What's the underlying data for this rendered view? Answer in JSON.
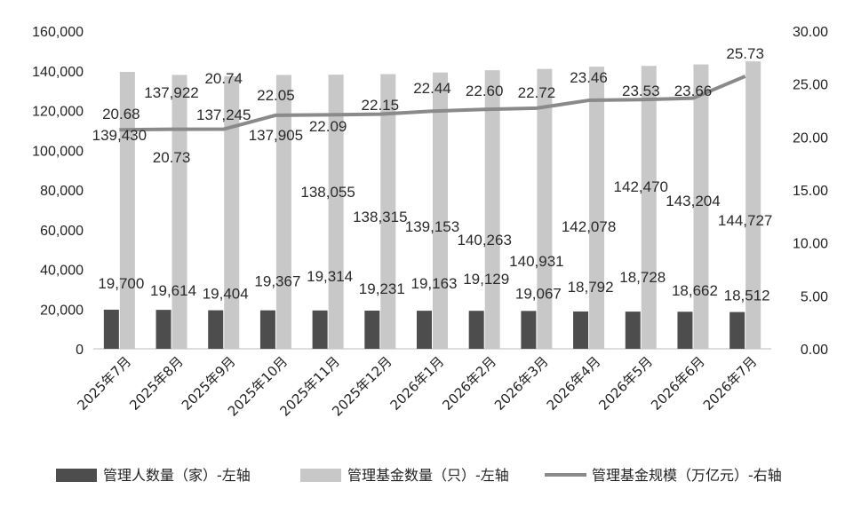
{
  "chart_data": {
    "type": "bar",
    "categories": [
      "2025年7月",
      "2025年8月",
      "2025年9月",
      "2025年10月",
      "2025年11月",
      "2025年12月",
      "2026年1月",
      "2026年2月",
      "2026年3月",
      "2026年4月",
      "2026年5月",
      "2026年6月",
      "2026年7月"
    ],
    "series": [
      {
        "name": "管理人数量（家）-左轴",
        "type": "bar",
        "axis": "left",
        "color": "#4d4d4d",
        "values": [
          19700,
          19614,
          19404,
          19367,
          19314,
          19231,
          19163,
          19129,
          19067,
          18792,
          18728,
          18662,
          18512
        ],
        "labels": [
          "19,700",
          "19,614",
          "19,404",
          "19,367",
          "19,314",
          "19,231",
          "19,163",
          "19,129",
          "19,067",
          "18,792",
          "18,728",
          "18,662",
          "18,512"
        ]
      },
      {
        "name": "管理基金数量（只）-左轴",
        "type": "bar",
        "axis": "left",
        "color": "#c8c8c8",
        "values": [
          139430,
          137922,
          137245,
          137905,
          138055,
          138315,
          139153,
          140263,
          140931,
          142078,
          142470,
          143204,
          144727
        ],
        "labels": [
          "139,430",
          "137,922",
          "137,245",
          "137,905",
          "138,055",
          "138,315",
          "139,153",
          "140,263",
          "140,931",
          "142,078",
          "142,470",
          "143,204",
          "144,727"
        ]
      },
      {
        "name": "管理基金规模（万亿元）-右轴",
        "type": "line",
        "axis": "right",
        "color": "#8a8a8a",
        "values": [
          20.68,
          20.73,
          20.74,
          22.05,
          22.09,
          22.15,
          22.44,
          22.6,
          22.72,
          23.46,
          23.53,
          23.66,
          25.73
        ],
        "labels": [
          "20.68",
          "20.73",
          "20.74",
          "22.05",
          "22.09",
          "22.15",
          "22.44",
          "22.60",
          "22.72",
          "23.46",
          "23.53",
          "23.66",
          "25.73"
        ]
      }
    ],
    "left_axis": {
      "min": 0,
      "max": 160000,
      "ticks": [
        "0",
        "20,000",
        "40,000",
        "60,000",
        "80,000",
        "100,000",
        "120,000",
        "140,000",
        "160,000"
      ]
    },
    "right_axis": {
      "min": 0,
      "max": 30,
      "ticks": [
        "0.00",
        "5.00",
        "10.00",
        "15.00",
        "20.00",
        "25.00",
        "30.00"
      ]
    },
    "grid": false,
    "legend_position": "bottom"
  }
}
